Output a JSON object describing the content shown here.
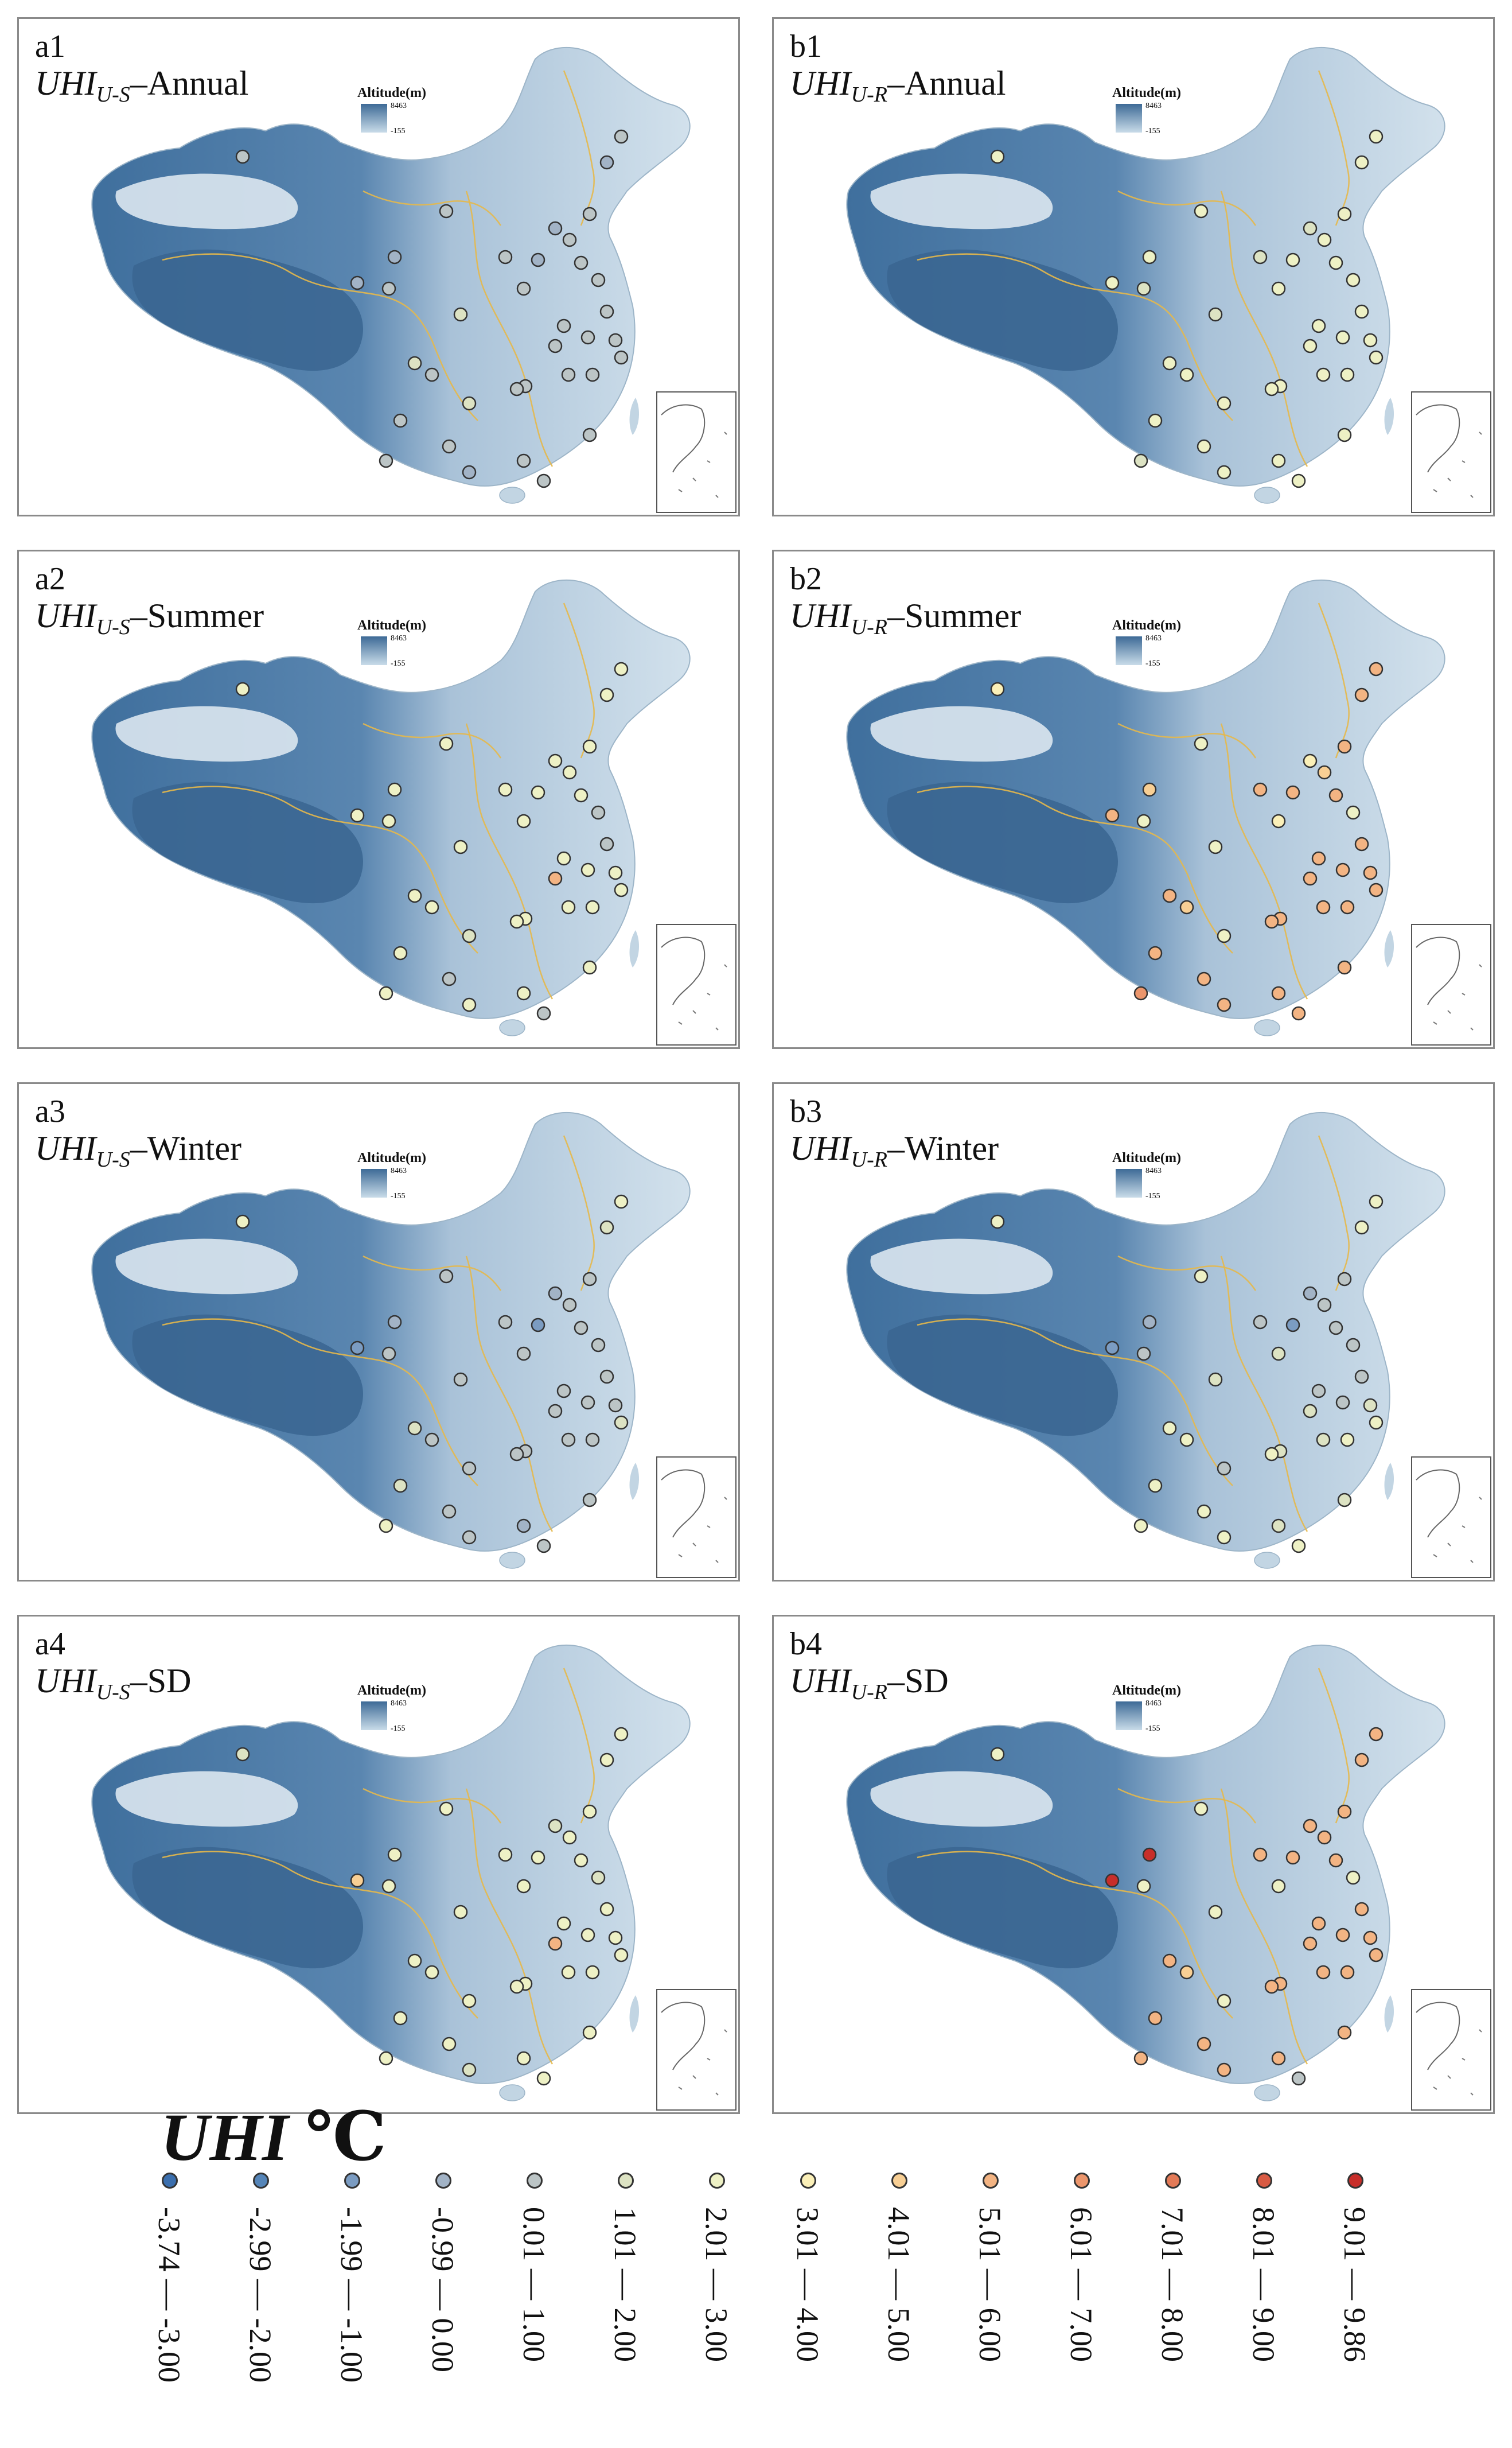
{
  "panels": [
    {
      "id": "a1",
      "uhi": "UHI",
      "sub": "U-S",
      "season": "Annual"
    },
    {
      "id": "b1",
      "uhi": "UHI",
      "sub": "U-R",
      "season": "Annual"
    },
    {
      "id": "a2",
      "uhi": "UHI",
      "sub": "U-S",
      "season": "Summer"
    },
    {
      "id": "b2",
      "uhi": "UHI",
      "sub": "U-R",
      "season": "Summer"
    },
    {
      "id": "a3",
      "uhi": "UHI",
      "sub": "U-S",
      "season": "Winter"
    },
    {
      "id": "b3",
      "uhi": "UHI",
      "sub": "U-R",
      "season": "Winter"
    },
    {
      "id": "a4",
      "uhi": "UHI",
      "sub": "U-S",
      "season": "SD"
    },
    {
      "id": "b4",
      "uhi": "UHI",
      "sub": "U-R",
      "season": "SD"
    }
  ],
  "altitude_legend": {
    "title": "Altitude(m)",
    "max": "8463",
    "min": "-155"
  },
  "legend": {
    "title_uhi": "UHI",
    "title_unit": "℃",
    "classes": [
      {
        "label": "-3.74 — -3.00",
        "color": "#3b6fae"
      },
      {
        "label": "-2.99 — -2.00",
        "color": "#5585b8"
      },
      {
        "label": "-1.99 — -1.00",
        "color": "#7b9cc2"
      },
      {
        "label": "-0.99 — 0.00",
        "color": "#a2b3c6"
      },
      {
        "label": "0.01 — 1.00",
        "color": "#bcc5c6"
      },
      {
        "label": "1.01 — 2.00",
        "color": "#dde3c3"
      },
      {
        "label": "2.01 — 3.00",
        "color": "#eef1c5"
      },
      {
        "label": "3.01 — 4.00",
        "color": "#fbf0b8"
      },
      {
        "label": "4.01 — 5.00",
        "color": "#f8cf94"
      },
      {
        "label": "5.01 — 6.00",
        "color": "#f3b483"
      },
      {
        "label": "6.01 — 7.00",
        "color": "#ec966c"
      },
      {
        "label": "7.01 — 8.00",
        "color": "#e37a57"
      },
      {
        "label": "8.01 — 9.00",
        "color": "#d95b44"
      },
      {
        "label": "9.01 — 9.86",
        "color": "#c82e2a"
      }
    ]
  }
}
